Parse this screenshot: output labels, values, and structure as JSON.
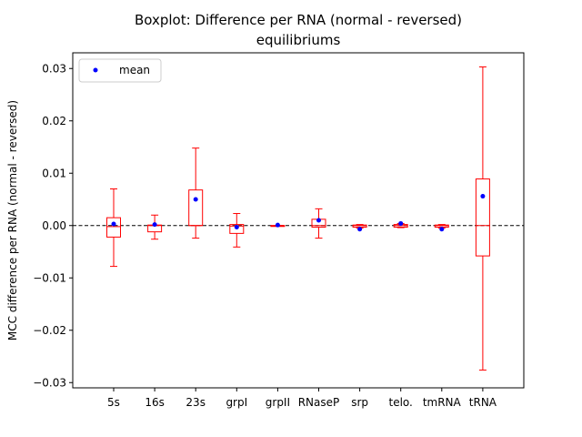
{
  "chart_data": {
    "type": "boxplot",
    "title": "Boxplot: Difference per RNA (normal - reversed)",
    "subtitle": "equilibriums",
    "xlabel": "",
    "ylabel": "MCC difference per RNA (normal - reversed)",
    "ylim": [
      -0.031,
      0.033
    ],
    "yticks": [
      0.03,
      0.02,
      0.01,
      0.0,
      -0.01,
      -0.02,
      -0.03
    ],
    "ytick_labels": [
      "0.03",
      "0.02",
      "0.01",
      "0.00",
      "−0.01",
      "−0.02",
      "−0.03"
    ],
    "reference_line": 0.0,
    "legend": {
      "placement": "top-left",
      "entries": [
        "mean"
      ]
    },
    "colors": {
      "box": "#ff0000",
      "mean": "#0000ff",
      "reference": "#000000"
    },
    "categories": [
      "5s",
      "16s",
      "23s",
      "grpI",
      "grpII",
      "RNaseP",
      "srp",
      "telo.",
      "tmRNA",
      "tRNA"
    ],
    "boxes": [
      {
        "name": "5s",
        "whisker_low": -0.0078,
        "q1": -0.0022,
        "median": -0.0002,
        "q3": 0.0015,
        "whisker_high": 0.007,
        "mean": 0.0003
      },
      {
        "name": "16s",
        "whisker_low": -0.0026,
        "q1": -0.0012,
        "median": 0.0,
        "q3": 0.0001,
        "whisker_high": 0.002,
        "mean": 0.0002
      },
      {
        "name": "23s",
        "whisker_low": -0.0024,
        "q1": 0.0,
        "median": 0.0,
        "q3": 0.0068,
        "whisker_high": 0.0148,
        "mean": 0.005
      },
      {
        "name": "grpI",
        "whisker_low": -0.0041,
        "q1": -0.0015,
        "median": -0.0001,
        "q3": 0.0002,
        "whisker_high": 0.0023,
        "mean": -0.0003
      },
      {
        "name": "grpII",
        "whisker_low": 0.0,
        "q1": 0.0,
        "median": 0.0,
        "q3": 0.0,
        "whisker_high": 0.0,
        "mean": 0.0001
      },
      {
        "name": "RNaseP",
        "whisker_low": -0.0024,
        "q1": -0.0003,
        "median": 0.0,
        "q3": 0.0012,
        "whisker_high": 0.0032,
        "mean": 0.001
      },
      {
        "name": "srp",
        "whisker_low": -0.0005,
        "q1": -0.0003,
        "median": 0.0,
        "q3": 0.0001,
        "whisker_high": 0.0002,
        "mean": -0.0007
      },
      {
        "name": "telo.",
        "whisker_low": -0.0004,
        "q1": -0.0003,
        "median": 0.0,
        "q3": 0.0002,
        "whisker_high": 0.0004,
        "mean": 0.0004
      },
      {
        "name": "tmRNA",
        "whisker_low": -0.0005,
        "q1": -0.0003,
        "median": 0.0,
        "q3": 0.0001,
        "whisker_high": 0.0002,
        "mean": -0.0007
      },
      {
        "name": "tRNA",
        "whisker_low": -0.0276,
        "q1": -0.0058,
        "median": 0.0,
        "q3": 0.0089,
        "whisker_high": 0.0303,
        "mean": 0.0056
      }
    ]
  }
}
